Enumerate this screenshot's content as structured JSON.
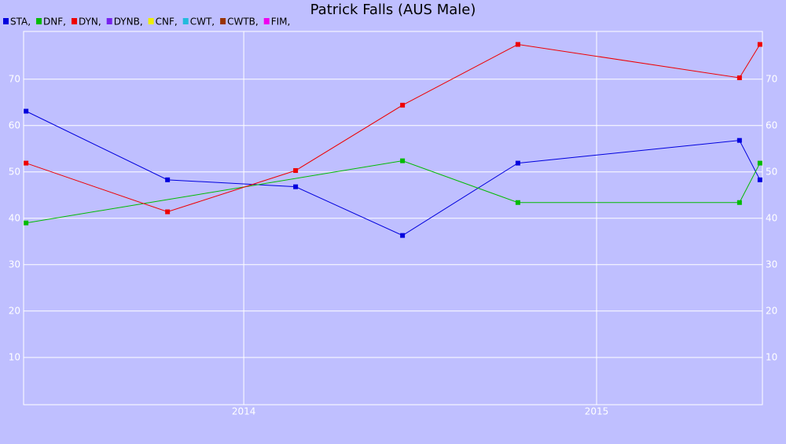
{
  "chart_data": {
    "type": "line",
    "title": "Patrick Falls (AUS Male)",
    "series": [
      {
        "name": "STA,",
        "color": "#0000dd",
        "x": [
          2013.383,
          2013.784,
          2014.147,
          2014.45,
          2014.777,
          2015.405,
          2015.463
        ],
        "values": [
          63.1,
          48.3,
          46.8,
          36.3,
          51.9,
          56.8,
          48.3
        ]
      },
      {
        "name": "DNF,",
        "color": "#00bb00",
        "x": [
          2013.383,
          2014.45,
          2014.777,
          2015.405,
          2015.463
        ],
        "values": [
          39.0,
          52.4,
          43.4,
          43.4,
          51.9
        ]
      },
      {
        "name": "DYN,",
        "color": "#ee0000",
        "x": [
          2013.383,
          2013.784,
          2014.147,
          2014.45,
          2014.777,
          2015.405,
          2015.463
        ],
        "values": [
          51.9,
          41.4,
          50.3,
          64.4,
          77.5,
          70.3,
          77.5
        ]
      },
      {
        "name": "DYNB,",
        "color": "#7722ee",
        "x": [],
        "values": []
      },
      {
        "name": "CNF,",
        "color": "#eeee00",
        "x": [],
        "values": []
      },
      {
        "name": "CWT,",
        "color": "#22bbdd",
        "x": [],
        "values": []
      },
      {
        "name": "CWTB,",
        "color": "#993300",
        "x": [],
        "values": []
      },
      {
        "name": "FIM,",
        "color": "#ee00ee",
        "x": [],
        "values": []
      }
    ],
    "xlim": [
      2013.376,
      2015.47
    ],
    "xticks": [
      2014,
      2015
    ],
    "ylim": [
      -0.2,
      80.3
    ],
    "yticks": [
      10,
      20,
      30,
      40,
      50,
      60,
      70
    ],
    "grid": true
  }
}
